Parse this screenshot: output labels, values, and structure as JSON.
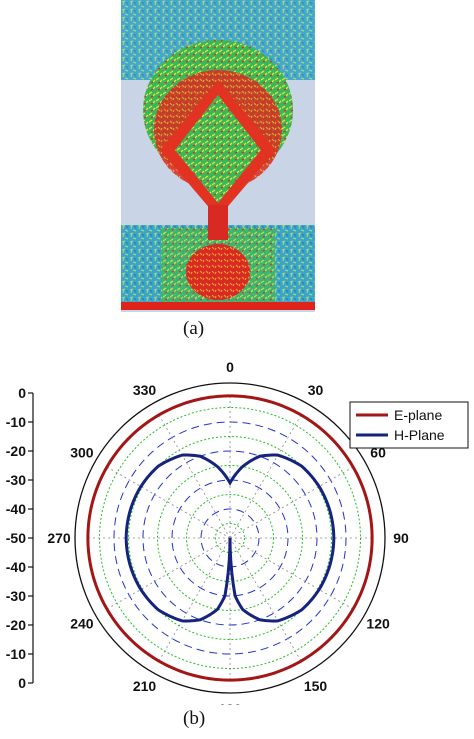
{
  "panel_a": {
    "caption": "(a)",
    "icon": "current-distribution-image"
  },
  "panel_b": {
    "caption": "(b)"
  },
  "colors": {
    "e_plane": "#a31616",
    "h_plane": "#15237f",
    "grid_green": "#22c022",
    "grid_blue": "#2233cc"
  },
  "chart_data": {
    "type": "polar",
    "title": "",
    "angle_ticks": [
      "0",
      "30",
      "60",
      "90",
      "120",
      "150",
      "180",
      "210",
      "240",
      "270",
      "300",
      "330"
    ],
    "angle_tick_values": [
      0,
      30,
      60,
      90,
      120,
      150,
      180,
      210,
      240,
      270,
      300,
      330
    ],
    "radial_ticks_top": [
      "0",
      "-10",
      "-20",
      "-30",
      "-40",
      "-50"
    ],
    "radial_ticks_bottom": [
      "-40",
      "-30",
      "-20",
      "-10",
      "0"
    ],
    "radial_range": [
      -50,
      0
    ],
    "angular_direction": "clockwise",
    "zero_location": "top",
    "legend_position": "top-right",
    "series": [
      {
        "name": "E-plane",
        "angles": [
          0,
          15,
          30,
          45,
          60,
          75,
          90,
          105,
          120,
          135,
          150,
          165,
          180,
          195,
          210,
          225,
          240,
          255,
          270,
          285,
          300,
          315,
          330,
          345
        ],
        "values": [
          -1,
          -1,
          -1,
          -1,
          -1,
          -1,
          -1,
          -1,
          -1,
          -1,
          -1,
          -1,
          -1,
          -1,
          -1,
          -1,
          -1,
          -1,
          -1,
          -1,
          -1,
          -1,
          -1,
          -1
        ]
      },
      {
        "name": "H-Plane",
        "angles": [
          0,
          5,
          10,
          20,
          30,
          45,
          60,
          75,
          90,
          105,
          120,
          135,
          150,
          160,
          170,
          175,
          180,
          185,
          190,
          200,
          210,
          225,
          240,
          255,
          270,
          285,
          300,
          315,
          330,
          340,
          350,
          355
        ],
        "values": [
          -31,
          -28,
          -25,
          -20,
          -17,
          -15,
          -14.5,
          -14.3,
          -14.2,
          -14.3,
          -14.5,
          -15,
          -17,
          -20,
          -25,
          -30,
          -50,
          -30,
          -25,
          -20,
          -17,
          -15,
          -14.5,
          -14.3,
          -14.2,
          -14.3,
          -14.5,
          -15,
          -17,
          -20,
          -25,
          -28
        ]
      }
    ]
  }
}
